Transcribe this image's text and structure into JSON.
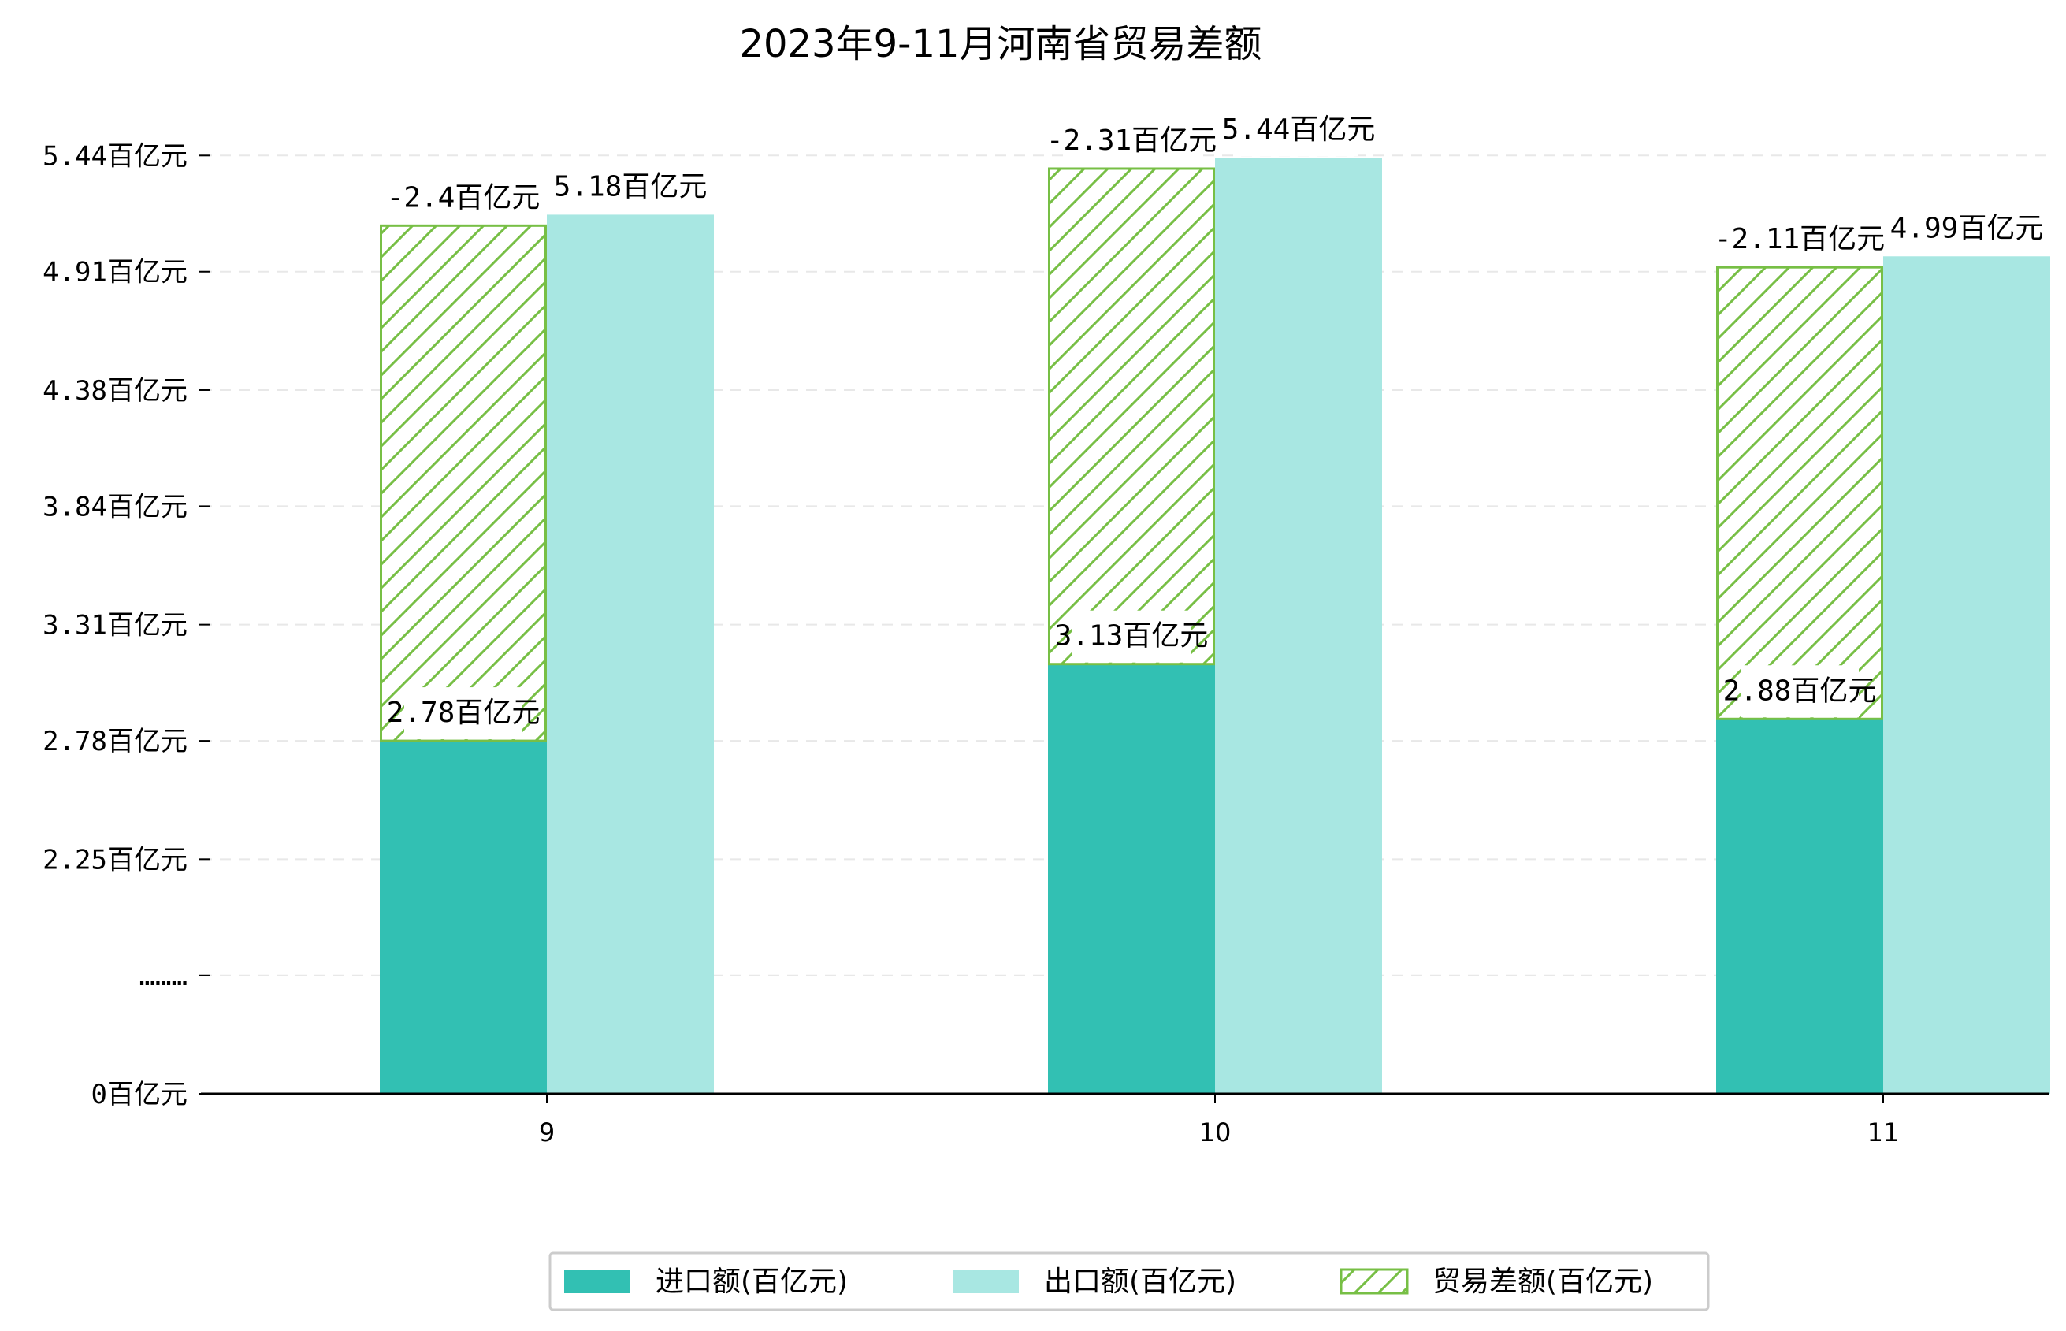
{
  "colors": {
    "import": "#32c0b3",
    "export": "#a8e7e2",
    "balance": "#77bf45",
    "grid": "#e8e8e8",
    "axis": "#000000"
  },
  "chart_data": {
    "type": "bar",
    "title": "2023年9-11月河南省贸易差额",
    "categories": [
      "9",
      "10",
      "11"
    ],
    "series": [
      {
        "name": "进口额(百亿元)",
        "values": [
          2.78,
          3.13,
          2.88
        ],
        "labels": [
          "2.78百亿元",
          "3.13百亿元",
          "2.88百亿元"
        ]
      },
      {
        "name": "出口额(百亿元)",
        "values": [
          5.18,
          5.44,
          4.99
        ],
        "labels": [
          "5.18百亿元",
          "5.44百亿元",
          "4.99百亿元"
        ]
      },
      {
        "name": "贸易差额(百亿元)",
        "values": [
          -2.4,
          -2.31,
          -2.11
        ],
        "labels": [
          "-2.4百亿元",
          "-2.31百亿元",
          "-2.11百亿元"
        ]
      }
    ],
    "y_ticks": [
      {
        "value": 0,
        "label": "0百亿元"
      },
      {
        "value": 0.54,
        "label": "………"
      },
      {
        "value": 1.07,
        "label": "2.25百亿元"
      },
      {
        "value": 1.61,
        "label": "2.78百亿元"
      },
      {
        "value": 2.14,
        "label": "3.31百亿元"
      },
      {
        "value": 2.68,
        "label": "3.84百亿元"
      },
      {
        "value": 3.21,
        "label": "4.38百亿元"
      },
      {
        "value": 3.75,
        "label": "4.91百亿元"
      },
      {
        "value": 4.28,
        "label": "5.44百亿元"
      }
    ],
    "axis_break": {
      "below": 1.68,
      "offset": 1.17
    },
    "ylim": [
      0,
      4.45
    ],
    "grid": true,
    "legend_position": "bottom-center"
  }
}
